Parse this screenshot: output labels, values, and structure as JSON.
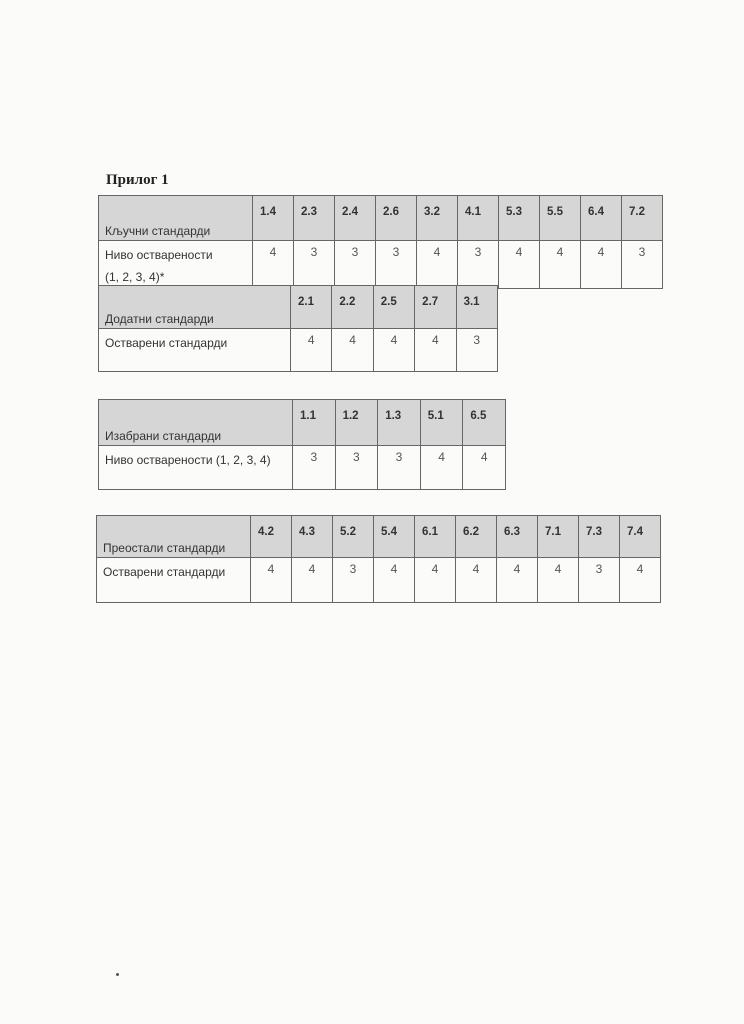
{
  "title": "Прилог 1",
  "tables": [
    {
      "header_label": "Кључни стандарди",
      "row_label_lines": [
        "Ниво остварености",
        "(1, 2, 3, 4)*"
      ],
      "codes": [
        "1.4",
        "2.3",
        "2.4",
        "2.6",
        "3.2",
        "4.1",
        "5.3",
        "5.5",
        "6.4",
        "7.2"
      ],
      "values": [
        "4",
        "3",
        "3",
        "3",
        "4",
        "3",
        "4",
        "4",
        "4",
        "3"
      ]
    },
    {
      "header_label": "Додатни стандарди",
      "row_label_lines": [
        "Остварени стандарди"
      ],
      "codes": [
        "2.1",
        "2.2",
        "2.5",
        "2.7",
        "3.1"
      ],
      "values": [
        "4",
        "4",
        "4",
        "4",
        "3"
      ]
    },
    {
      "header_label": "Изабрани стандарди",
      "row_label_lines": [
        "Ниво остварености (1, 2, 3, 4)"
      ],
      "codes": [
        "1.1",
        "1.2",
        "1.3",
        "5.1",
        "6.5"
      ],
      "values": [
        "3",
        "3",
        "3",
        "4",
        "4"
      ]
    },
    {
      "header_label": "Преостали стандарди",
      "row_label_lines": [
        "Остварени стандарди"
      ],
      "codes": [
        "4.2",
        "4.3",
        "5.2",
        "5.4",
        "6.1",
        "6.2",
        "6.3",
        "7.1",
        "7.3",
        "7.4"
      ],
      "values": [
        "4",
        "4",
        "3",
        "4",
        "4",
        "4",
        "4",
        "4",
        "3",
        "4"
      ]
    }
  ]
}
